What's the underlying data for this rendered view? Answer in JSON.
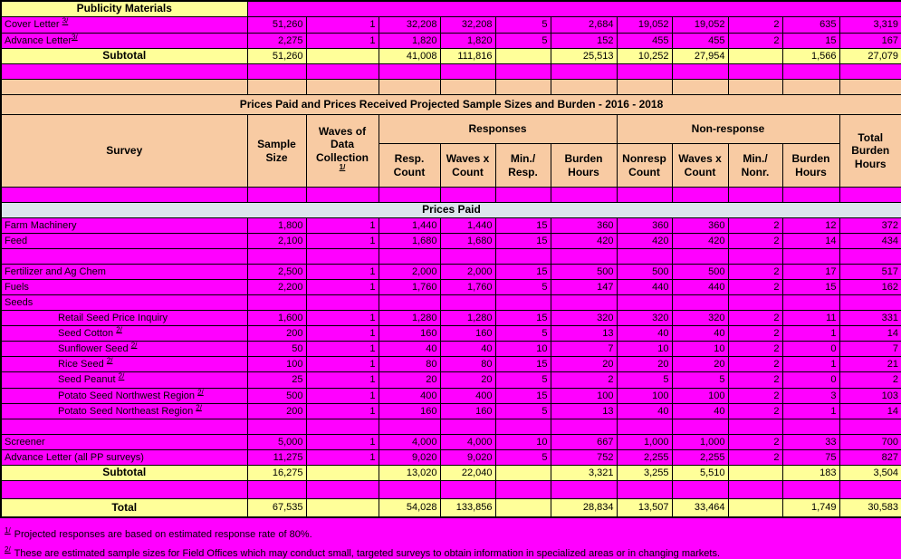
{
  "palette": {
    "row_magenta": "#FF00FF",
    "row_yellow": "#FFFF99",
    "header_peach": "#F8CBA3",
    "section_blue": "#DCE5EC",
    "border": "#000000"
  },
  "columns": {
    "survey": "Survey",
    "sample_size": "Sample Size",
    "waves": "Waves of Data Collection",
    "waves_sup": "1/",
    "responses_group": "Responses",
    "nonresponse_group": "Non-response",
    "sub": [
      "Resp. Count",
      "Waves x Count",
      "Min./ Resp.",
      "Burden Hours",
      "Nonresp Count",
      "Waves x Count",
      "Min./ Nonr.",
      "Burden Hours"
    ],
    "total": "Total Burden Hours"
  },
  "rows": [
    {
      "type": "section_yellow",
      "label": "Publicity Materials",
      "h": 16
    },
    {
      "type": "data",
      "label": "Cover Letter ",
      "sup": "3/",
      "cells": [
        "51,260",
        "1",
        "32,208",
        "32,208",
        "5",
        "2,684",
        "19,052",
        "19,052",
        "2",
        "635",
        "3,319"
      ],
      "h": 18
    },
    {
      "type": "data",
      "label": "Advance Letter",
      "sup": "3/",
      "cells": [
        "2,275",
        "1",
        "1,820",
        "1,820",
        "5",
        "152",
        "455",
        "455",
        "2",
        "15",
        "167"
      ],
      "h": 17
    },
    {
      "type": "subtotal",
      "label": "Subtotal",
      "cells": [
        "51,260",
        "",
        "41,008",
        "111,816",
        "",
        "25,513",
        "10,252",
        "27,954",
        "",
        "1,566",
        "27,079"
      ],
      "h": 17
    },
    {
      "type": "spacer",
      "h": 16
    },
    {
      "type": "spacer_peach",
      "h": 4
    },
    {
      "type": "title",
      "label": "Prices Paid and Prices Received Projected Sample Sizes and Burden - 2016 - 2018"
    },
    {
      "type": "headgroup"
    },
    {
      "type": "spacer",
      "h": 15
    },
    {
      "type": "section_blue",
      "label": "Prices Paid",
      "h": 16
    },
    {
      "type": "data",
      "label": "Farm Machinery",
      "cells": [
        "1,800",
        "1",
        "1,440",
        "1,440",
        "15",
        "360",
        "360",
        "360",
        "2",
        "12",
        "372"
      ],
      "h": 16
    },
    {
      "type": "data",
      "label": "Feed",
      "cells": [
        "2,100",
        "1",
        "1,680",
        "1,680",
        "15",
        "420",
        "420",
        "420",
        "2",
        "14",
        "434"
      ],
      "h": 16
    },
    {
      "type": "spacer",
      "h": 4
    },
    {
      "type": "data",
      "label": "Fertilizer and Ag Chem",
      "cells": [
        "2,500",
        "1",
        "2,000",
        "2,000",
        "15",
        "500",
        "500",
        "500",
        "2",
        "17",
        "517"
      ],
      "h": 17
    },
    {
      "type": "data",
      "label": "Fuels",
      "cells": [
        "2,200",
        "1",
        "1,760",
        "1,760",
        "5",
        "147",
        "440",
        "440",
        "2",
        "15",
        "162"
      ],
      "h": 16
    },
    {
      "type": "data",
      "label": "Seeds",
      "cells": [
        "",
        "",
        "",
        "",
        "",
        "",
        "",
        "",
        "",
        "",
        ""
      ],
      "h": 16
    },
    {
      "type": "data",
      "indent": true,
      "label": "Retail Seed Price Inquiry",
      "cells": [
        "1,600",
        "1",
        "1,280",
        "1,280",
        "15",
        "320",
        "320",
        "320",
        "2",
        "11",
        "331"
      ],
      "h": 17
    },
    {
      "type": "data",
      "indent": true,
      "label": "Seed Cotton ",
      "sup": "2/",
      "cells": [
        "200",
        "1",
        "160",
        "160",
        "5",
        "13",
        "40",
        "40",
        "2",
        "1",
        "14"
      ],
      "h": 17
    },
    {
      "type": "data",
      "indent": true,
      "label": "Sunflower Seed ",
      "sup": "2/",
      "cells": [
        "50",
        "1",
        "40",
        "40",
        "10",
        "7",
        "10",
        "10",
        "2",
        "0",
        "7"
      ],
      "h": 17
    },
    {
      "type": "data",
      "indent": true,
      "label": "Rice Seed ",
      "sup": "2/",
      "cells": [
        "100",
        "1",
        "80",
        "80",
        "15",
        "20",
        "20",
        "20",
        "2",
        "1",
        "21"
      ],
      "h": 17
    },
    {
      "type": "data",
      "indent": true,
      "label": "Seed Peanut ",
      "sup": "2/",
      "cells": [
        "25",
        "1",
        "20",
        "20",
        "5",
        "2",
        "5",
        "5",
        "2",
        "0",
        "2"
      ],
      "h": 18
    },
    {
      "type": "data",
      "indent": true,
      "label": "Potato Seed Northwest Region ",
      "sup": "2/",
      "cells": [
        "500",
        "1",
        "400",
        "400",
        "15",
        "100",
        "100",
        "100",
        "2",
        "3",
        "103"
      ],
      "h": 17
    },
    {
      "type": "data",
      "indent": true,
      "label": "Potato Seed Northeast Region ",
      "sup": "2/",
      "cells": [
        "200",
        "1",
        "160",
        "160",
        "5",
        "13",
        "40",
        "40",
        "2",
        "1",
        "14"
      ],
      "h": 17
    },
    {
      "type": "spacer",
      "h": 4
    },
    {
      "type": "data",
      "label": "Screener",
      "cells": [
        "5,000",
        "1",
        "4,000",
        "4,000",
        "10",
        "667",
        "1,000",
        "1,000",
        "2",
        "33",
        "700"
      ],
      "h": 17
    },
    {
      "type": "data",
      "label": "Advance Letter (all PP surveys)",
      "cells": [
        "11,275",
        "1",
        "9,020",
        "9,020",
        "5",
        "752",
        "2,255",
        "2,255",
        "2",
        "75",
        "827"
      ],
      "h": 17
    },
    {
      "type": "subtotal",
      "label": "Subtotal",
      "cells": [
        "16,275",
        "",
        "13,020",
        "22,040",
        "",
        "3,321",
        "3,255",
        "5,510",
        "",
        "183",
        "3,504"
      ],
      "h": 17
    },
    {
      "type": "spacer",
      "h": 20
    },
    {
      "type": "total",
      "label": "Total",
      "cells": [
        "67,535",
        "",
        "54,028",
        "133,856",
        "",
        "28,834",
        "13,507",
        "33,464",
        "",
        "1,749",
        "30,583"
      ],
      "h": 19
    }
  ],
  "footnotes": [
    {
      "marker": "1/",
      "text": "Projected responses are based on estimated response rate of 80%."
    },
    {
      "marker": "2/",
      "text": "These are estimated sample sizes for Field Offices which may conduct small, targeted surveys to obtain information in specialized areas or in changing markets."
    }
  ]
}
